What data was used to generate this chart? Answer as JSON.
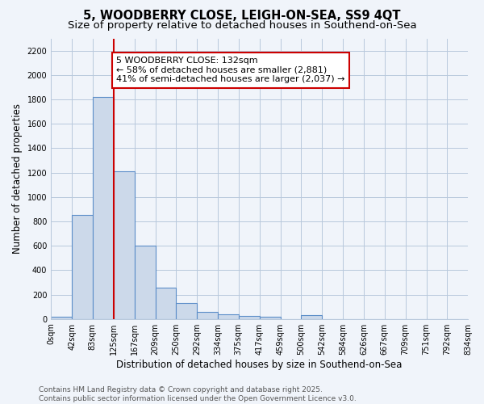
{
  "title": "5, WOODBERRY CLOSE, LEIGH-ON-SEA, SS9 4QT",
  "subtitle": "Size of property relative to detached houses in Southend-on-Sea",
  "xlabel": "Distribution of detached houses by size in Southend-on-Sea",
  "ylabel": "Number of detached properties",
  "bin_edges": [
    0,
    42,
    83,
    125,
    167,
    209,
    250,
    292,
    334,
    375,
    417,
    459,
    500,
    542,
    584,
    626,
    667,
    709,
    751,
    792,
    834
  ],
  "bin_labels": [
    "0sqm",
    "42sqm",
    "83sqm",
    "125sqm",
    "167sqm",
    "209sqm",
    "250sqm",
    "292sqm",
    "334sqm",
    "375sqm",
    "417sqm",
    "459sqm",
    "500sqm",
    "542sqm",
    "584sqm",
    "626sqm",
    "667sqm",
    "709sqm",
    "751sqm",
    "792sqm",
    "834sqm"
  ],
  "counts": [
    20,
    850,
    1820,
    1210,
    600,
    255,
    130,
    55,
    40,
    25,
    18,
    0,
    30,
    0,
    0,
    0,
    0,
    0,
    0,
    0
  ],
  "bar_color": "#ccd9ea",
  "bar_edge_color": "#5b8dc8",
  "grid_color": "#b8c8dc",
  "bg_color": "#f0f4fa",
  "vline_x": 125,
  "vline_color": "#cc0000",
  "annotation_line1": "5 WOODBERRY CLOSE: 132sqm",
  "annotation_line2": "← 58% of detached houses are smaller (2,881)",
  "annotation_line3": "41% of semi-detached houses are larger (2,037) →",
  "annotation_box_color": "#ffffff",
  "annotation_box_edge": "#cc0000",
  "ylim": [
    0,
    2300
  ],
  "yticks": [
    0,
    200,
    400,
    600,
    800,
    1000,
    1200,
    1400,
    1600,
    1800,
    2000,
    2200
  ],
  "footer_line1": "Contains HM Land Registry data © Crown copyright and database right 2025.",
  "footer_line2": "Contains public sector information licensed under the Open Government Licence v3.0.",
  "title_fontsize": 10.5,
  "subtitle_fontsize": 9.5,
  "tick_fontsize": 7,
  "ylabel_fontsize": 8.5,
  "xlabel_fontsize": 8.5,
  "footer_fontsize": 6.5,
  "annotation_fontsize": 8
}
